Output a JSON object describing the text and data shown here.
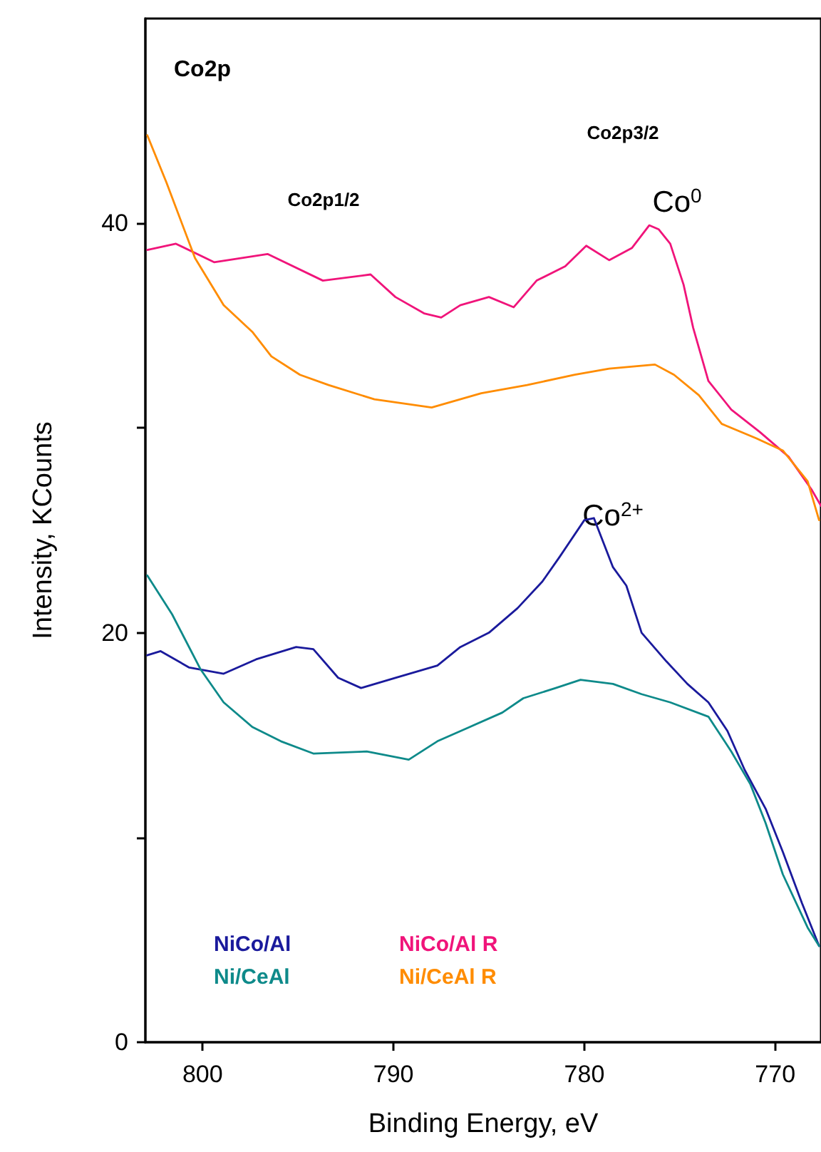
{
  "chart_data": {
    "type": "line",
    "xlabel": "Binding Energy, eV",
    "ylabel": "Intensity, KCounts",
    "xlim": [
      803,
      767.6
    ],
    "ylim": [
      0,
      50
    ],
    "xticks": [
      800,
      790,
      780,
      770
    ],
    "yticks": [
      0,
      {
        "value": 10,
        "label": null
      },
      20,
      {
        "value": 30,
        "label": null
      },
      40
    ],
    "grid": false,
    "legend": "bottom left",
    "marker": "none",
    "line_style": "solid",
    "annotations": [
      "Co2p",
      "Co2p1/2",
      "Co2p3/2",
      "Co$^{0}$",
      "Co$^{2+}$"
    ],
    "series": [
      {
        "name": "NiCo/Al",
        "color": "#1a1a9c",
        "x": [
          802.9,
          802.2,
          800.7,
          798.9,
          797.2,
          795.1,
          794.2,
          792.9,
          791.7,
          789.9,
          787.7,
          786.5,
          785.0,
          783.5,
          782.2,
          781.3,
          780.0,
          779.5,
          778.5,
          777.8,
          777.0,
          775.7,
          774.6,
          773.5,
          772.5,
          771.6,
          770.5,
          769.6,
          768.6,
          767.7
        ],
        "values": [
          18.9,
          19.1,
          18.3,
          18.0,
          18.7,
          19.3,
          19.2,
          17.8,
          17.3,
          17.8,
          18.4,
          19.3,
          20.0,
          21.2,
          22.5,
          23.7,
          25.5,
          25.6,
          23.2,
          22.3,
          20.0,
          18.6,
          17.5,
          16.6,
          15.2,
          13.3,
          11.4,
          9.3,
          6.8,
          4.7
        ]
      },
      {
        "name": "Ni/CeAl",
        "color": "#0e8a8a",
        "x": [
          802.9,
          801.6,
          800.1,
          798.9,
          797.4,
          795.9,
          794.2,
          791.4,
          789.2,
          787.7,
          786.0,
          784.3,
          783.2,
          781.5,
          780.2,
          778.5,
          777.0,
          775.5,
          773.5,
          772.3,
          771.3,
          770.5,
          769.6,
          768.3,
          767.7
        ],
        "values": [
          22.8,
          20.9,
          18.2,
          16.6,
          15.4,
          14.7,
          14.1,
          14.2,
          13.8,
          14.7,
          15.4,
          16.1,
          16.8,
          17.3,
          17.7,
          17.5,
          17.0,
          16.6,
          15.9,
          14.2,
          12.6,
          10.7,
          8.2,
          5.6,
          4.7
        ]
      },
      {
        "name": "NiCo/Al R",
        "color": "#f0147a",
        "x": [
          802.9,
          801.4,
          799.4,
          796.6,
          793.7,
          791.2,
          789.9,
          788.4,
          787.5,
          786.5,
          785.0,
          783.7,
          782.5,
          781.0,
          779.9,
          778.7,
          777.5,
          776.6,
          776.1,
          775.5,
          774.8,
          774.3,
          773.5,
          772.3,
          770.8,
          769.3,
          768.1,
          767.6
        ],
        "values": [
          38.7,
          39.0,
          38.1,
          38.5,
          37.2,
          37.5,
          36.4,
          35.6,
          35.4,
          36.0,
          36.4,
          35.9,
          37.2,
          37.9,
          38.9,
          38.2,
          38.8,
          39.9,
          39.7,
          39.0,
          37.0,
          34.9,
          32.3,
          30.9,
          29.8,
          28.6,
          27.0,
          26.2
        ]
      },
      {
        "name": "Ni/CeAl R",
        "color": "#ff8c00",
        "x": [
          802.9,
          801.9,
          800.4,
          798.9,
          797.4,
          796.4,
          794.9,
          793.4,
          791.0,
          788.0,
          785.4,
          783.0,
          780.5,
          778.7,
          776.3,
          775.3,
          774.0,
          772.8,
          771.0,
          769.6,
          768.3,
          767.7
        ],
        "values": [
          44.3,
          42.0,
          38.3,
          36.0,
          34.7,
          33.5,
          32.6,
          32.1,
          31.4,
          31.0,
          31.7,
          32.1,
          32.6,
          32.9,
          33.1,
          32.6,
          31.6,
          30.2,
          29.5,
          28.9,
          27.4,
          25.5
        ]
      }
    ]
  }
}
